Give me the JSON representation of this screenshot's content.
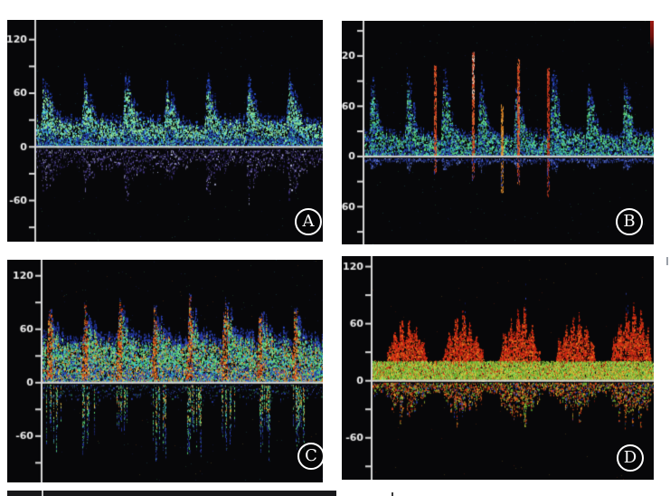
{
  "figure": {
    "bg": "#ffffff",
    "panel_bg": "#070709",
    "axis_color": "#d6d6d6",
    "label_color": "#e8e8e8",
    "panel_letter_color": "#ffffff"
  },
  "panels": [
    {
      "label": "A",
      "yticks": [
        {
          "v": 120,
          "t": "120"
        },
        {
          "v": 60,
          "t": "60"
        },
        {
          "v": 0,
          "t": "0"
        },
        {
          "v": -60,
          "t": "-60"
        }
      ],
      "tick_step": 30,
      "render": {
        "seed": 101,
        "beats": 7,
        "phase0": 0.93,
        "vmax": 142,
        "vmin": -106,
        "axis_x": 30,
        "peak": [
          68,
          86
        ],
        "dia": [
          24,
          34
        ],
        "rise": 0.1,
        "fall": 0.33,
        "mid": 0.45,
        "density": 0.62,
        "fexp": 1.25,
        "noise": 0.5,
        "tip_f": 0.82,
        "core_f": 0.3,
        "pal_tip": [
          "#151d66",
          "#23339c",
          "#2c55d4"
        ],
        "pal_mid": [
          "#8fe898",
          "#63e0b4",
          "#45c6e8",
          "#2c55d4",
          "#a8f0a8",
          "#8fe898"
        ],
        "pal_core": [
          "#1d2f8c",
          "#2c55d4",
          "#35b9d8",
          "#74e296",
          "#1d2f8c"
        ],
        "mirror": {
          "amp": 0.66,
          "density": 0.2,
          "fexp": 1.0,
          "colors": [
            "#4a3c8e",
            "#665ab2",
            "#2a2260",
            "#8e84cc",
            "#c4c8f0",
            "#3a3078",
            "#4a3c8e"
          ]
        }
      }
    },
    {
      "label": "B",
      "yticks": [
        {
          "v": 120,
          "t": "120"
        },
        {
          "v": 60,
          "t": "60"
        },
        {
          "v": 0,
          "t": "0"
        },
        {
          "v": -60,
          "t": "-60"
        }
      ],
      "tick_step": 30,
      "render": {
        "seed": 202,
        "beats": 8,
        "phase0": 0.9,
        "vmax": 162,
        "vmin": -105,
        "axis_x": 23,
        "peak": [
          88,
          122
        ],
        "dia": [
          22,
          30
        ],
        "rise": 0.08,
        "fall": 0.3,
        "mid": 0.32,
        "density": 0.55,
        "fexp": 1.25,
        "noise": 0.7,
        "tip_f": 0.82,
        "core_f": 0.3,
        "pal_tip": [
          "#141f63",
          "#27389e",
          "#2b4ec6"
        ],
        "pal_mid": [
          "#57d87a",
          "#3cc2c2",
          "#2b4ec6",
          "#79e392",
          "#2b4ec6",
          "#57d87a"
        ],
        "pal_core": [
          "#1c2a7e",
          "#2b4ec6",
          "#3cc2c2",
          "#57d87a"
        ],
        "mirror": {
          "amp": 0.16,
          "density": 0.5,
          "fexp": 1.2,
          "colors": [
            "#25349a",
            "#3a55cc",
            "#16205e",
            "#7088d8"
          ]
        },
        "spikes": [
          {
            "x": 0.245,
            "h": 0.92,
            "down": 18,
            "colors": [
              "#c23018",
              "#d8502c",
              "#e87838"
            ]
          },
          {
            "x": 0.375,
            "h": 1.04,
            "down": 25,
            "bright": "#f2d6c4",
            "colors": [
              "#c23018",
              "#d8502c",
              "#e87838"
            ]
          },
          {
            "x": 0.475,
            "h": 0.52,
            "down": 40,
            "colors": [
              "#e09030",
              "#d8791c",
              "#e8a848"
            ]
          },
          {
            "x": 0.53,
            "h": 0.98,
            "down": 30,
            "colors": [
              "#c23018",
              "#d8502c",
              "#e87838"
            ]
          },
          {
            "x": 0.635,
            "h": 0.88,
            "down": 45,
            "colors": [
              "#b02c18",
              "#c23018",
              "#d8502c"
            ]
          }
        ]
      }
    },
    {
      "label": "C",
      "yticks": [
        {
          "v": 120,
          "t": "120"
        },
        {
          "v": 60,
          "t": "60"
        },
        {
          "v": 0,
          "t": "0"
        },
        {
          "v": -60,
          "t": "-60"
        }
      ],
      "tick_step": 30,
      "render": {
        "seed": 303,
        "beats": 8,
        "phase0": 0.9,
        "vmax": 138,
        "vmin": -112,
        "axis_x": 37,
        "peak": [
          78,
          98
        ],
        "dia": [
          40,
          55
        ],
        "rise": 0.08,
        "fall": 0.35,
        "mid": 0.65,
        "density": 0.85,
        "fexp": 1.15,
        "noise": 0.7,
        "tip_f": 0.85,
        "core_f": 0.3,
        "pal_tip": [
          "#18246e",
          "#2b3da6",
          "#2b45c0"
        ],
        "pal_mid": [
          "#5ad878",
          "#36b8d4",
          "#2b45c0",
          "#8fe898",
          "#e87820",
          "#5ad878"
        ],
        "pal_core": [
          "#2b45c0",
          "#36b8d4",
          "#5ad878",
          "#e0d05c",
          "#2b45c0",
          "#e87820"
        ],
        "core": {
          "w": 0.17,
          "p": 0.62,
          "colors": [
            "#cc3a12",
            "#e25a1a",
            "#ef7d28",
            "#f0a030",
            "#cc3a12"
          ]
        },
        "mirror": {
          "amp": 0.35,
          "density": 0.12,
          "fexp": 1.2,
          "colors": [
            "#1a2468",
            "#2b45c0",
            "#3a4aa0",
            "#2f7a58"
          ]
        },
        "down": {
          "from": 0.0,
          "to": 0.42,
          "p": 0.55,
          "d": [
            40,
            85
          ],
          "density": 0.5,
          "shallow": [
            "#5ad878",
            "#ef7d28",
            "#36b8d4",
            "#e0d05c",
            "#5ad878"
          ],
          "deep": [
            "#2b45c0",
            "#1a2468",
            "#5ad878",
            "#252e8a"
          ]
        }
      }
    },
    {
      "label": "D",
      "yticks": [
        {
          "v": 120,
          "t": "120"
        },
        {
          "v": 60,
          "t": "60"
        },
        {
          "v": 0,
          "t": "0"
        },
        {
          "v": -60,
          "t": "-60"
        }
      ],
      "tick_step": 30,
      "render": {
        "seed": 404,
        "beats": 5,
        "phase0": 0.85,
        "shape": "cluster",
        "vmax": 131,
        "vmin": -104,
        "axis_x": 32,
        "peak": [
          42,
          58
        ],
        "dia": [
          14,
          18
        ],
        "rise": 0.08,
        "fall": 0.3,
        "mid": 0.4,
        "density": 0.9,
        "fexp": 1.0,
        "noise": 0.25,
        "tip_f": 0.85,
        "core_f": 0.28,
        "pal_tip": [
          "#b01e0e",
          "#d42816",
          "#e24a18"
        ],
        "pal_mid": [
          "#d42816",
          "#e24a18",
          "#c82010",
          "#ee7420",
          "#d42816"
        ],
        "pal_core": [
          "#d42816",
          "#e24a18",
          "#ee7420",
          "#eec23a"
        ],
        "base": [
          0,
          20
        ],
        "base_colors": [
          "#6cbe34",
          "#a0cc3c",
          "#e2c838",
          "#4aa42c",
          "#8fe06a"
        ],
        "tips": {
          "min": 52,
          "p": 0.06,
          "ext": 0.5,
          "colors": [
            "#223099",
            "#3344bb",
            "#111c66"
          ]
        },
        "mirror": {
          "amp": 0.6,
          "density": 0.55,
          "fexp": 1.15,
          "colors": [
            "#e24a18",
            "#ee7420",
            "#6cbe34",
            "#d42816",
            "#eec23a",
            "#2b45c0",
            "#e24a18",
            "#6cbe34"
          ]
        }
      }
    }
  ]
}
